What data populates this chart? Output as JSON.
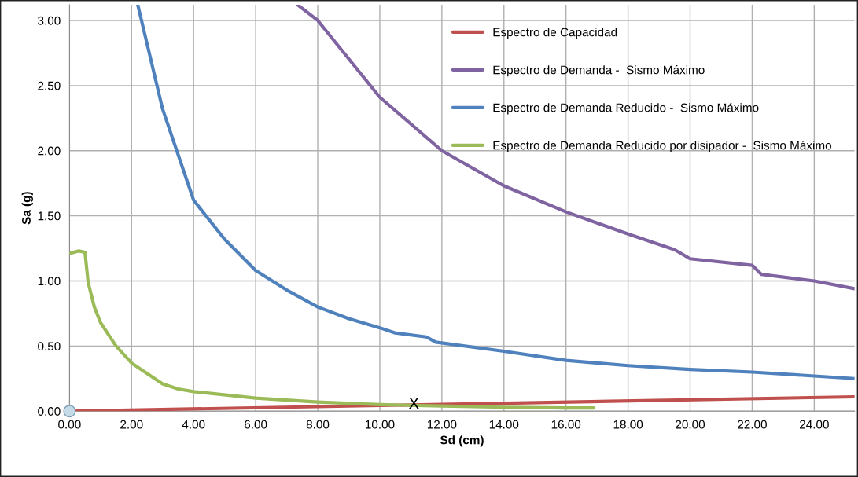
{
  "chart_data": {
    "type": "line",
    "xlabel": "Sd (cm)",
    "ylabel": "Sa (g)",
    "xlim": [
      0,
      25.3
    ],
    "ylim": [
      0,
      3.12
    ],
    "xticks": [
      {
        "value": 0,
        "label": "0.00"
      },
      {
        "value": 2,
        "label": "2.00"
      },
      {
        "value": 4,
        "label": "4.00"
      },
      {
        "value": 6,
        "label": "6.00"
      },
      {
        "value": 8,
        "label": "8.00"
      },
      {
        "value": 10,
        "label": "10.00"
      },
      {
        "value": 12,
        "label": "12.00"
      },
      {
        "value": 14,
        "label": "14.00"
      },
      {
        "value": 16,
        "label": "16.00"
      },
      {
        "value": 18,
        "label": "18.00"
      },
      {
        "value": 20,
        "label": "20.00"
      },
      {
        "value": 22,
        "label": "22.00"
      },
      {
        "value": 24,
        "label": "24.00"
      }
    ],
    "yticks": [
      {
        "value": 0,
        "label": "0.00"
      },
      {
        "value": 0.5,
        "label": "0.50"
      },
      {
        "value": 1,
        "label": "1.00"
      },
      {
        "value": 1.5,
        "label": "1.50"
      },
      {
        "value": 2,
        "label": "2.00"
      },
      {
        "value": 2.5,
        "label": "2.50"
      },
      {
        "value": 3,
        "label": "3.00"
      }
    ],
    "grid": true,
    "legend": "top right",
    "series": [
      {
        "name": "Espectro de Capacidad",
        "color": "#c0504d",
        "x": [
          0,
          25.3
        ],
        "values": [
          0,
          0.11
        ]
      },
      {
        "name": "Espectro de Demanda -  Sismo Máximo",
        "color": "#8064a2",
        "x": [
          7.35,
          8,
          10,
          12,
          14,
          16,
          18,
          19.5,
          20,
          22,
          22.3,
          24,
          25.3
        ],
        "values": [
          3.12,
          3.0,
          2.41,
          2.0,
          1.73,
          1.53,
          1.36,
          1.24,
          1.17,
          1.12,
          1.05,
          1.0,
          0.94
        ]
      },
      {
        "name": "Espectro de Demanda Reducido -  Sismo Máximo",
        "color": "#4f81bd",
        "x": [
          2.2,
          3,
          4,
          5,
          6,
          7,
          8,
          9,
          10,
          10.5,
          11.5,
          11.8,
          14,
          16,
          18,
          20,
          22,
          24,
          25.3
        ],
        "values": [
          3.12,
          2.32,
          1.62,
          1.32,
          1.08,
          0.93,
          0.8,
          0.71,
          0.64,
          0.6,
          0.57,
          0.53,
          0.46,
          0.39,
          0.35,
          0.32,
          0.3,
          0.27,
          0.25
        ]
      },
      {
        "name": "Espectro de Demanda Reducido por disipador -  Sismo Máximo",
        "color": "#9bbb59",
        "x": [
          0,
          0.3,
          0.5,
          0.6,
          0.8,
          1,
          1.5,
          2,
          2.5,
          3,
          3.5,
          4,
          6,
          8,
          10,
          12,
          14,
          16,
          16.9
        ],
        "values": [
          1.21,
          1.23,
          1.22,
          0.99,
          0.8,
          0.68,
          0.5,
          0.37,
          0.29,
          0.21,
          0.17,
          0.15,
          0.1,
          0.07,
          0.05,
          0.04,
          0.03,
          0.025,
          0.025
        ]
      },
      {
        "type": "scatter",
        "marker": "circle",
        "color": "#c6dbe8",
        "x": [
          0
        ],
        "values": [
          0
        ]
      }
    ],
    "annotations": [
      {
        "text": "X",
        "x": 11.1,
        "y": 0.05
      }
    ]
  }
}
